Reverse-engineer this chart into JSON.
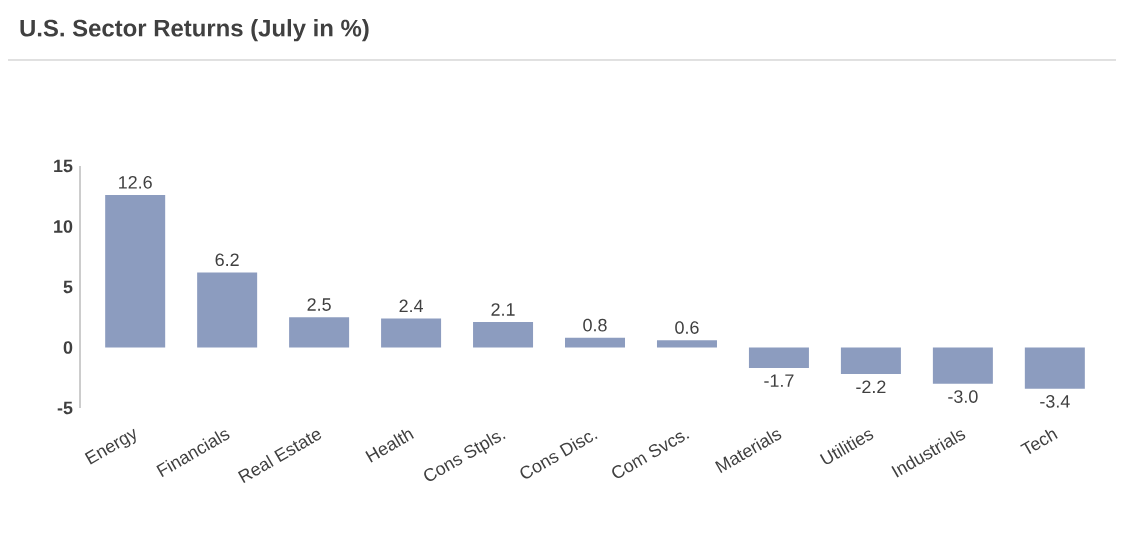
{
  "chart_data": {
    "type": "bar",
    "title": "U.S. Sector Returns (July in %)",
    "categories": [
      "Energy",
      "Financials",
      "Real Estate",
      "Health",
      "Cons Stpls.",
      "Cons Disc.",
      "Com Svcs.",
      "Materials",
      "Utilities",
      "Industrials",
      "Tech"
    ],
    "values": [
      12.6,
      6.2,
      2.5,
      2.4,
      2.1,
      0.8,
      0.6,
      -1.7,
      -2.2,
      -3.0,
      -3.4
    ],
    "value_labels": [
      "12.6",
      "6.2",
      "2.5",
      "2.4",
      "2.1",
      "0.8",
      "0.6",
      "-1.7",
      "-2.2",
      "-3.0",
      "-3.4"
    ],
    "color": "#8c9cbf",
    "ylim": [
      -5,
      15
    ],
    "yticks": [
      -5,
      0,
      5,
      10,
      15
    ]
  }
}
